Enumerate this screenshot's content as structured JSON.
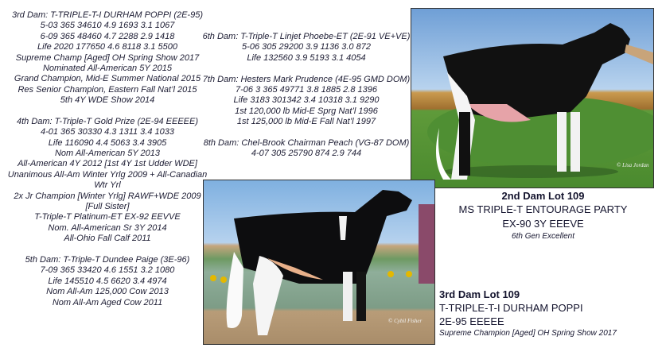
{
  "pedigree_left": [
    {
      "lines": [
        "3rd Dam: T-TRIPLE-T-I DURHAM POPPI  (2E-95)",
        "5-03   365  34610 4.9  1693  3.1 1067",
        "6-09   365  48460  4.7   2288  2.9  1418",
        "Life 2020 177650  4.6   8118  3.1  5500",
        "Supreme Champ [Aged] OH Spring Show 2017",
        "Nominated All-American 5Y 2015",
        "Grand Champion, Mid-E Summer National 2015",
        "Res Senior Champion, Eastern Fall Nat’l 2015",
        "5th 4Y WDE Show 2014"
      ]
    },
    {
      "lines": [
        "4th Dam: T-Triple-T Gold Prize  (2E-94 EEEEE)",
        "4-01 365 30330 4.3 1311 3.4 1033",
        "Life 116090 4.4 5063 3.4 3905",
        "Nom All-American 5Y 2013",
        "All-American 4Y 2012 [1st 4Y 1st Udder WDE]",
        "Unanimous All-Am Winter Yrlg 2009 + All-Canadian",
        "Wtr Yrl",
        "2x Jr Champion [Winter Yrlg] RAWF+WDE 2009",
        "[Full Sister]",
        "T-Triple-T Platinum-ET EX-92 EEVVE",
        "Nom. All-American Sr 3Y 2014",
        "All-Ohio Fall Calf 2011"
      ]
    },
    {
      "lines": [
        "5th Dam: T-Triple-T Dundee Paige  (3E-96)",
        "7-09 365 33420 4.6 1551 3.2 1080",
        "Life 145510 4.5 6620 3.4 4974",
        "Nom All-Am 125,000 Cow 2013",
        "Nom All-Am Aged Cow 2011"
      ]
    }
  ],
  "pedigree_middle": [
    {
      "lines": [
        "6th Dam: T-Triple-T Linjet Phoebe-ET  (2E-91 VE+VE)",
        "5-06 305 29200 3.9 1136 3.0 872",
        "Life 132560 3.9 5193 3.1 4054"
      ]
    },
    {
      "lines": [
        "7th Dam: Hesters Mark Prudence  (4E-95 GMD DOM)",
        "7-06 3 365 49771 3.8  1885  2.8  1396",
        "Life 3183 301342 3.4  10318  3.1  9290",
        "1st 120,000 lb Mid-E Sprg Nat’l 1996",
        "1st 125,000 lb Mid-E Fall Nat’l 1997"
      ]
    },
    {
      "lines": [
        "8th Dam: Chel-Brook Chairman Peach  (VG-87 DOM)",
        "4-07 305 25790 874 2.9 744"
      ]
    }
  ],
  "photos": {
    "second_dam_watermark": "© Lisa Jordan",
    "third_dam_watermark": "© Cybil Fisher"
  },
  "caption_2nd_dam": {
    "title": "2nd Dam Lot 109",
    "name": "MS TRIPLE-T ENTOURAGE PARTY",
    "score": "EX-90 3Y EEEVE",
    "note": "6th Gen Excellent"
  },
  "caption_3rd_dam": {
    "title": "3rd Dam Lot 109",
    "name": "T-TRIPLE-T-I DURHAM POPPI",
    "score": "2E-95 EEEEE",
    "note": "Supreme Champion [Aged] OH Spring Show 2017"
  }
}
